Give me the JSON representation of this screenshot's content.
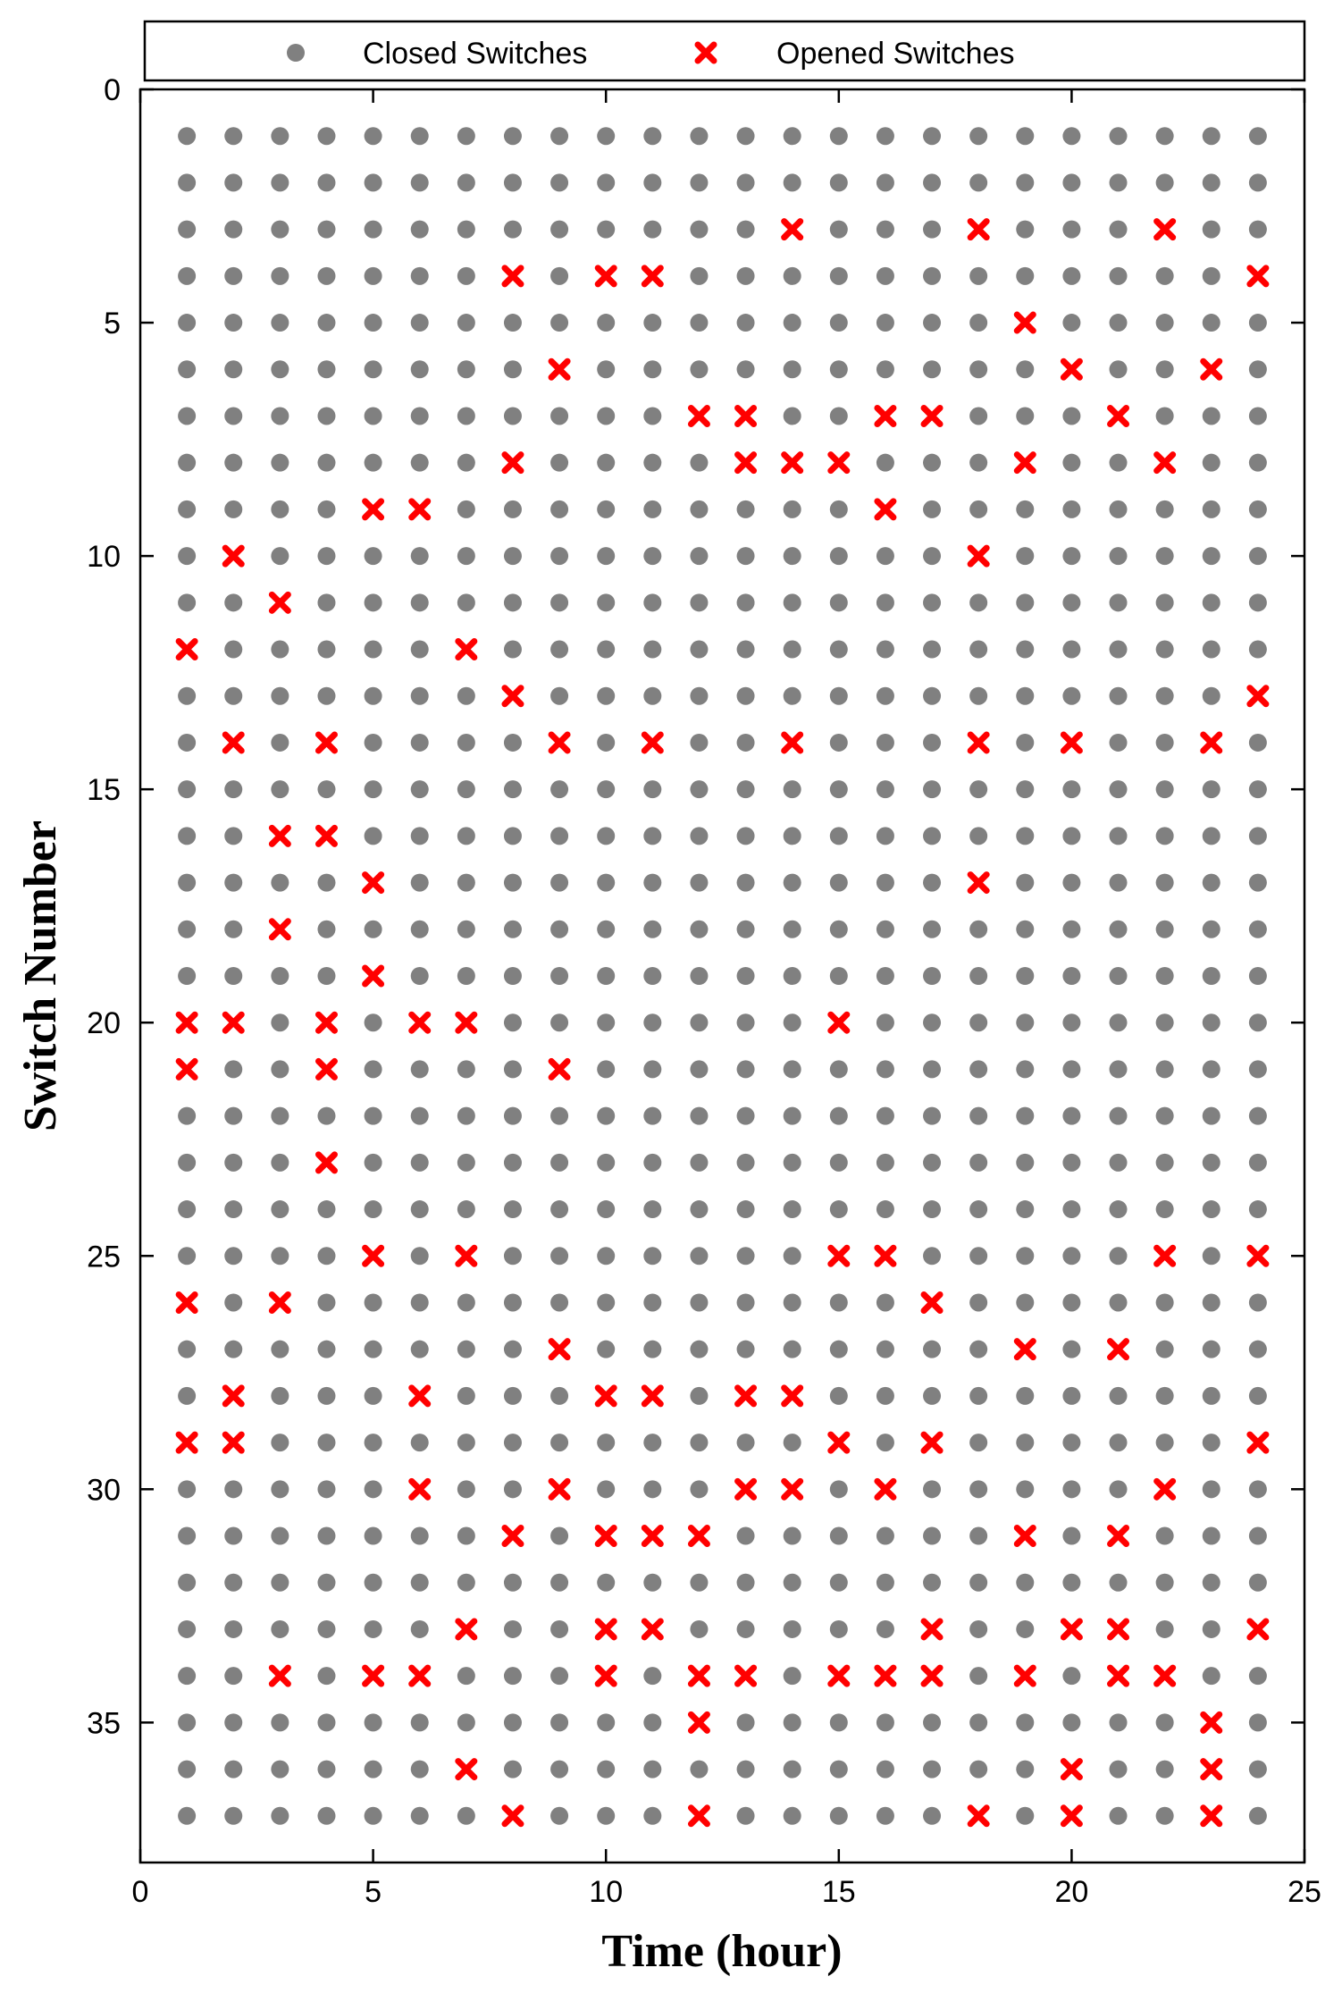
{
  "chart_data": {
    "type": "scatter",
    "title": "",
    "xlabel": "Time (hour)",
    "ylabel": "Switch Number",
    "xlim": [
      0,
      25
    ],
    "ylim": [
      0,
      38
    ],
    "y_reversed": true,
    "xticks": [
      0,
      5,
      10,
      15,
      20,
      25
    ],
    "yticks": [
      0,
      5,
      10,
      15,
      20,
      25,
      30,
      35
    ],
    "grid": false,
    "legend_position": "top",
    "colors": {
      "closed": "#808080",
      "opened": "#ff0000"
    },
    "series": [
      {
        "name": "Closed Switches",
        "marker": "circle",
        "description_of_values": "all hours 1-24 x all switches 1-37 not listed under Opened Switches",
        "x_range": [
          1,
          24
        ],
        "y_range": [
          1,
          37
        ]
      },
      {
        "name": "Opened Switches",
        "marker": "x",
        "points": [
          [
            1,
            12
          ],
          [
            1,
            20
          ],
          [
            1,
            21
          ],
          [
            1,
            26
          ],
          [
            1,
            29
          ],
          [
            2,
            10
          ],
          [
            2,
            14
          ],
          [
            2,
            20
          ],
          [
            2,
            28
          ],
          [
            2,
            29
          ],
          [
            3,
            11
          ],
          [
            3,
            16
          ],
          [
            3,
            18
          ],
          [
            3,
            26
          ],
          [
            3,
            34
          ],
          [
            4,
            14
          ],
          [
            4,
            16
          ],
          [
            4,
            20
          ],
          [
            4,
            21
          ],
          [
            4,
            23
          ],
          [
            5,
            9
          ],
          [
            5,
            17
          ],
          [
            5,
            19
          ],
          [
            5,
            25
          ],
          [
            5,
            34
          ],
          [
            6,
            9
          ],
          [
            6,
            20
          ],
          [
            6,
            28
          ],
          [
            6,
            30
          ],
          [
            6,
            34
          ],
          [
            7,
            12
          ],
          [
            7,
            20
          ],
          [
            7,
            25
          ],
          [
            7,
            33
          ],
          [
            7,
            36
          ],
          [
            8,
            4
          ],
          [
            8,
            8
          ],
          [
            8,
            13
          ],
          [
            8,
            31
          ],
          [
            8,
            37
          ],
          [
            9,
            6
          ],
          [
            9,
            14
          ],
          [
            9,
            21
          ],
          [
            9,
            27
          ],
          [
            9,
            30
          ],
          [
            10,
            4
          ],
          [
            10,
            28
          ],
          [
            10,
            31
          ],
          [
            10,
            33
          ],
          [
            10,
            34
          ],
          [
            11,
            4
          ],
          [
            11,
            14
          ],
          [
            11,
            28
          ],
          [
            11,
            31
          ],
          [
            11,
            33
          ],
          [
            12,
            7
          ],
          [
            12,
            31
          ],
          [
            12,
            34
          ],
          [
            12,
            35
          ],
          [
            12,
            37
          ],
          [
            13,
            7
          ],
          [
            13,
            8
          ],
          [
            13,
            28
          ],
          [
            13,
            30
          ],
          [
            13,
            34
          ],
          [
            14,
            3
          ],
          [
            14,
            8
          ],
          [
            14,
            14
          ],
          [
            14,
            28
          ],
          [
            14,
            30
          ],
          [
            15,
            8
          ],
          [
            15,
            20
          ],
          [
            15,
            25
          ],
          [
            15,
            29
          ],
          [
            15,
            34
          ],
          [
            16,
            7
          ],
          [
            16,
            9
          ],
          [
            16,
            25
          ],
          [
            16,
            30
          ],
          [
            16,
            34
          ],
          [
            17,
            7
          ],
          [
            17,
            26
          ],
          [
            17,
            29
          ],
          [
            17,
            33
          ],
          [
            17,
            34
          ],
          [
            18,
            3
          ],
          [
            18,
            10
          ],
          [
            18,
            14
          ],
          [
            18,
            17
          ],
          [
            18,
            37
          ],
          [
            19,
            5
          ],
          [
            19,
            8
          ],
          [
            19,
            27
          ],
          [
            19,
            31
          ],
          [
            19,
            34
          ],
          [
            20,
            6
          ],
          [
            20,
            14
          ],
          [
            20,
            33
          ],
          [
            20,
            36
          ],
          [
            20,
            37
          ],
          [
            21,
            7
          ],
          [
            21,
            27
          ],
          [
            21,
            31
          ],
          [
            21,
            33
          ],
          [
            21,
            34
          ],
          [
            22,
            3
          ],
          [
            22,
            8
          ],
          [
            22,
            25
          ],
          [
            22,
            30
          ],
          [
            22,
            34
          ],
          [
            23,
            6
          ],
          [
            23,
            14
          ],
          [
            23,
            35
          ],
          [
            23,
            36
          ],
          [
            23,
            37
          ],
          [
            24,
            4
          ],
          [
            24,
            13
          ],
          [
            24,
            25
          ],
          [
            24,
            29
          ],
          [
            24,
            33
          ]
        ]
      }
    ]
  }
}
